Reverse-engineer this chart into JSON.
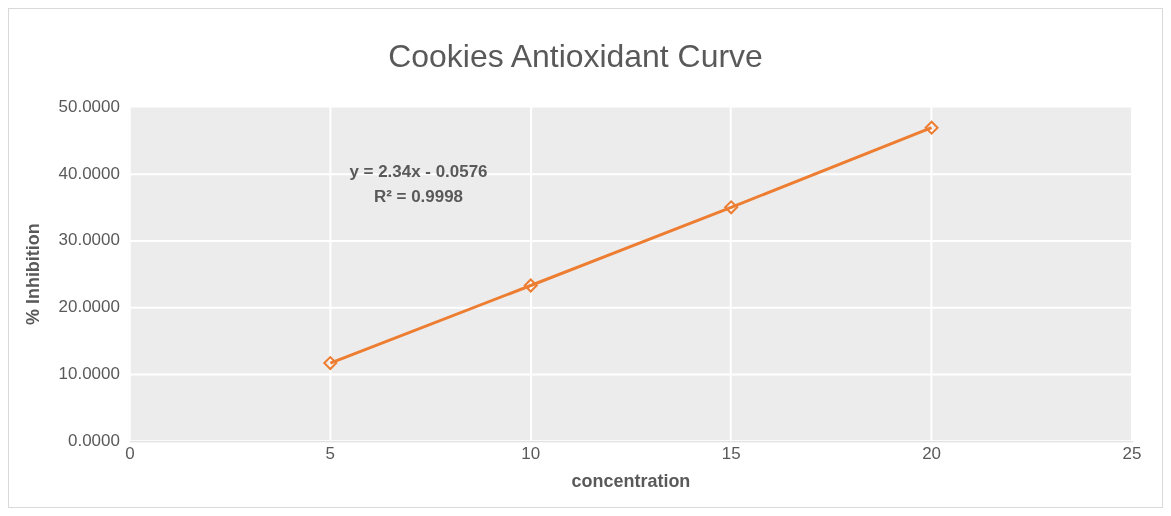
{
  "chart_data": {
    "type": "line",
    "title": "Cookies Antioxidant Curve",
    "xlabel": "concentration",
    "ylabel": "% Inhibition",
    "x": [
      5,
      10,
      15,
      20
    ],
    "series": [
      {
        "color": "#ed7d31",
        "values": [
          11.7,
          23.3,
          35.0,
          46.9
        ]
      }
    ],
    "xlim": [
      0,
      25
    ],
    "xticks": [
      0,
      5,
      10,
      15,
      20,
      25
    ],
    "ylim": [
      0,
      50
    ],
    "yticks": [
      {
        "value": 0,
        "label": "0.0000"
      },
      {
        "value": 10,
        "label": "10.0000"
      },
      {
        "value": 20,
        "label": "20.0000"
      },
      {
        "value": 30,
        "label": "30.0000"
      },
      {
        "value": 40,
        "label": "40.0000"
      },
      {
        "value": 50,
        "label": "50.0000"
      }
    ],
    "annotations": [
      "y = 2.34x - 0.0576",
      "R² = 0.9998"
    ],
    "grid": true,
    "legend": false,
    "marker": "diamond",
    "line_style": "solid"
  }
}
